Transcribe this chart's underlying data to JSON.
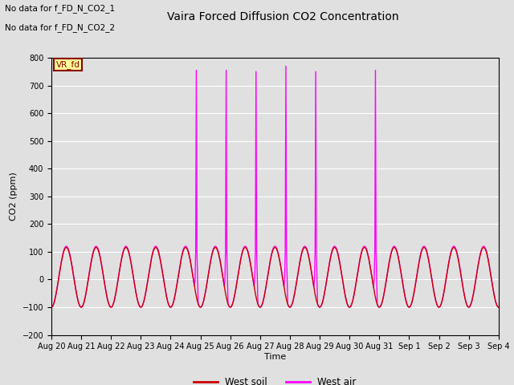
{
  "title": "Vaira Forced Diffusion CO2 Concentration",
  "ylabel": "CO2 (ppm)",
  "xlabel": "Time",
  "ylim": [
    -200,
    800
  ],
  "yticks": [
    -200,
    -100,
    0,
    100,
    200,
    300,
    400,
    500,
    600,
    700,
    800
  ],
  "annotation_lines": [
    "No data for f_FD_N_CO2_1",
    "No data for f_FD_N_CO2_2"
  ],
  "box_label": "VR_fd",
  "legend_entries": [
    "West soil",
    "West air"
  ],
  "legend_colors": [
    "#cc0000",
    "#ff00ff"
  ],
  "soil_color": "#cc0000",
  "air_color": "#ff00ff",
  "bg_color": "#e0e0e0",
  "grid_color": "#ffffff",
  "fig_bg_color": "#e0e0e0",
  "n_days": 15,
  "x_labels": [
    "Aug 20",
    "Aug 21",
    "Aug 22",
    "Aug 23",
    "Aug 24",
    "Aug 25",
    "Aug 26",
    "Aug 27",
    "Aug 28",
    "Aug 29",
    "Aug 30",
    "Aug 31",
    "Sep 1",
    "Sep 2",
    "Sep 3",
    "Sep 4"
  ],
  "spike_days": [
    4,
    5,
    6,
    7,
    8,
    10
  ],
  "spike_heights": [
    755,
    755,
    750,
    770,
    750,
    755
  ]
}
